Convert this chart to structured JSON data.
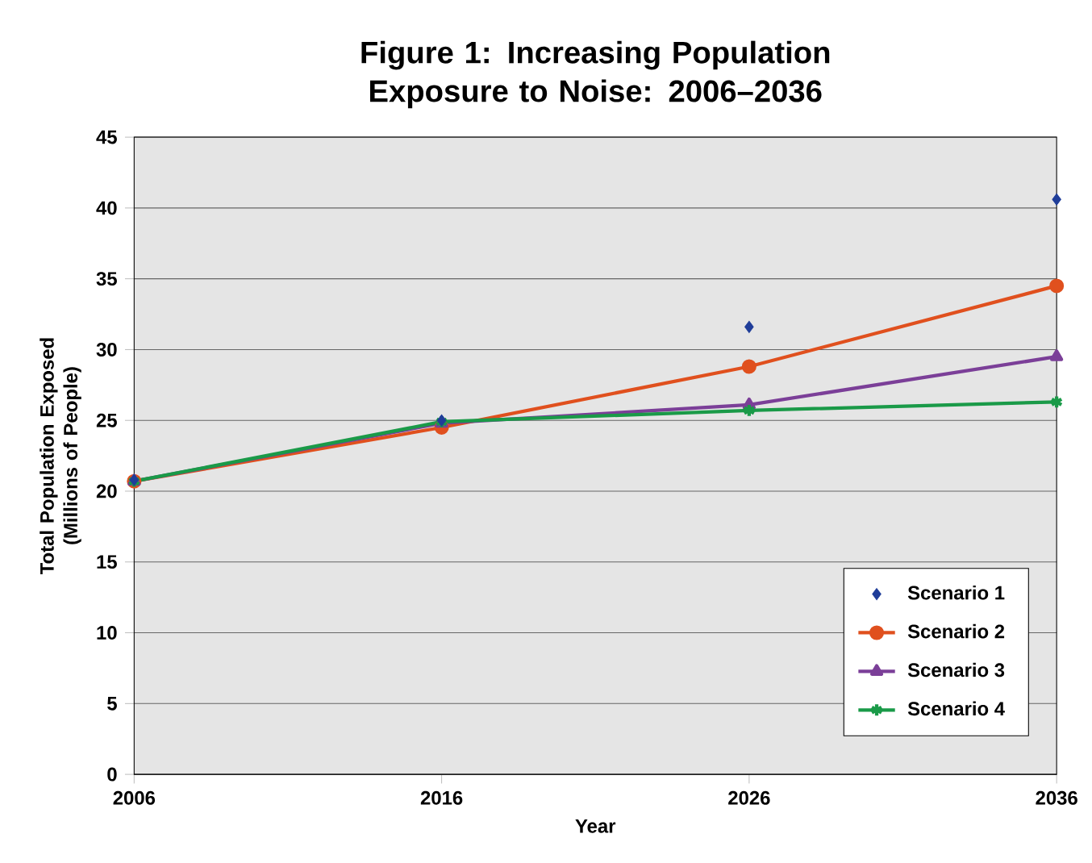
{
  "chart_data": {
    "type": "line",
    "title": "Figure 1: Increasing Population Exposure to Noise: 2006–2036",
    "xlabel": "Year",
    "ylabel": "Total Population Exposed (Millions of People)",
    "x": [
      2006,
      2016,
      2026,
      2036
    ],
    "series": [
      {
        "name": "Scenario 1",
        "type": "scatter",
        "marker": "diamond",
        "color": "#1f3d99",
        "values": [
          20.8,
          25.0,
          31.6,
          40.6
        ]
      },
      {
        "name": "Scenario 2",
        "marker": "circle",
        "color": "#e0501e",
        "values": [
          20.7,
          24.5,
          28.8,
          34.5
        ]
      },
      {
        "name": "Scenario 3",
        "marker": "triangle",
        "color": "#7b3f98",
        "values": [
          20.7,
          24.8,
          26.1,
          29.5
        ]
      },
      {
        "name": "Scenario 4",
        "marker": "cross",
        "color": "#1a9a48",
        "values": [
          20.7,
          24.9,
          25.7,
          26.3
        ]
      }
    ],
    "xlim": [
      2006,
      2036
    ],
    "xticks": [
      2006,
      2016,
      2026,
      2036
    ],
    "ylim": [
      0,
      45
    ],
    "yticks": [
      0,
      5,
      10,
      15,
      20,
      25,
      30,
      35,
      40,
      45
    ],
    "grid": "y",
    "legend": "bottom right"
  }
}
